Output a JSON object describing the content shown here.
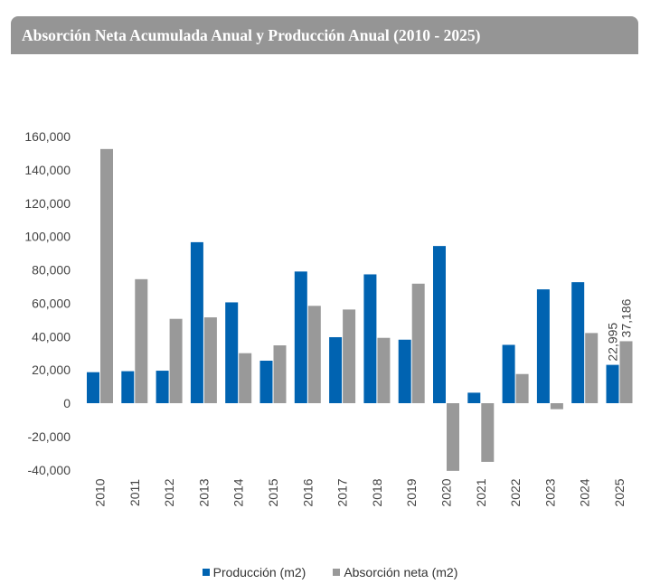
{
  "title": "Absorción Neta Acumulada Anual y Producción Anual (2010 - 2025)",
  "colors": {
    "produccion": "#0063b1",
    "absorcion": "#999999"
  },
  "chart_data": {
    "type": "bar",
    "title": "Absorción Neta Acumulada Anual y Producción Anual (2010 - 2025)",
    "categories": [
      "2010",
      "2011",
      "2012",
      "2013",
      "2014",
      "2015",
      "2016",
      "2017",
      "2018",
      "2019",
      "2020",
      "2021",
      "2022",
      "2023",
      "2024",
      "2025"
    ],
    "series": [
      {
        "name": "Producción (m2)",
        "values": [
          18600,
          19200,
          19500,
          96600,
          60500,
          25500,
          79000,
          39600,
          77300,
          38100,
          94300,
          6300,
          35000,
          68300,
          72600,
          22995
        ]
      },
      {
        "name": "Absorción neta (m2)",
        "values": [
          152500,
          74400,
          50600,
          51500,
          30000,
          34700,
          58400,
          56200,
          39200,
          71700,
          -40600,
          -35200,
          17500,
          -3600,
          42100,
          37186
        ]
      }
    ],
    "data_labels": [
      {
        "category": "2025",
        "series": 0,
        "text": "22,995"
      },
      {
        "category": "2025",
        "series": 1,
        "text": "37,186"
      }
    ],
    "yticks": [
      "160,000",
      "140,000",
      "120,000",
      "100,000",
      "80,000",
      "60,000",
      "40,000",
      "20,000",
      "0",
      "-20,000",
      "-40,000"
    ],
    "ylim": [
      -40000,
      160000
    ],
    "xlabel": "",
    "ylabel": "",
    "grid": false,
    "legend": "bottom-center"
  }
}
